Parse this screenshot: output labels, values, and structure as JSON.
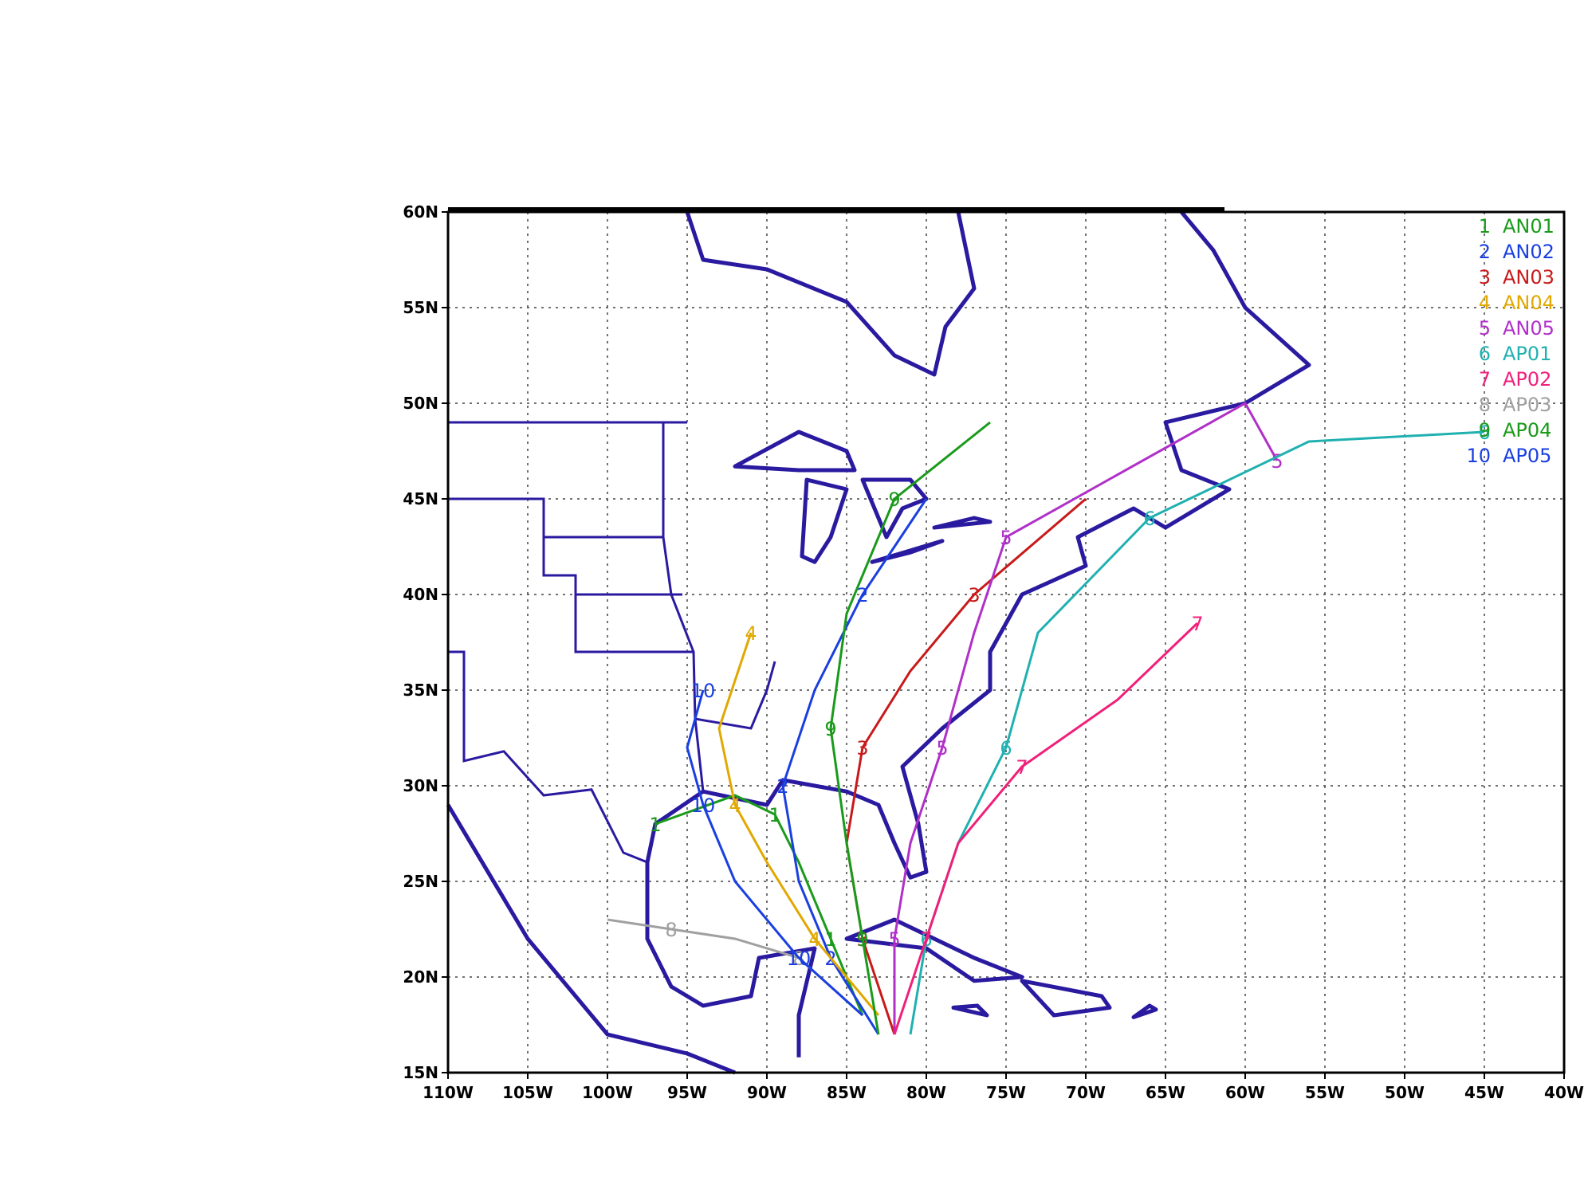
{
  "map": {
    "lonlim": [
      -110,
      -40
    ],
    "latlim": [
      15,
      60
    ],
    "grid": true,
    "lon_ticks": [
      {
        "value": -110,
        "label": "110W"
      },
      {
        "value": -105,
        "label": "105W"
      },
      {
        "value": -100,
        "label": "100W"
      },
      {
        "value": -95,
        "label": "95W"
      },
      {
        "value": -90,
        "label": "90W"
      },
      {
        "value": -85,
        "label": "85W"
      },
      {
        "value": -80,
        "label": "80W"
      },
      {
        "value": -75,
        "label": "75W"
      },
      {
        "value": -70,
        "label": "70W"
      },
      {
        "value": -65,
        "label": "65W"
      },
      {
        "value": -60,
        "label": "60W"
      },
      {
        "value": -55,
        "label": "55W"
      },
      {
        "value": -50,
        "label": "50W"
      },
      {
        "value": -45,
        "label": "45W"
      },
      {
        "value": -40,
        "label": "40W"
      }
    ],
    "lat_ticks": [
      {
        "value": 15,
        "label": "15N"
      },
      {
        "value": 20,
        "label": "20N"
      },
      {
        "value": 25,
        "label": "25N"
      },
      {
        "value": 30,
        "label": "30N"
      },
      {
        "value": 35,
        "label": "35N"
      },
      {
        "value": 40,
        "label": "40N"
      },
      {
        "value": 45,
        "label": "45N"
      },
      {
        "value": 50,
        "label": "50N"
      },
      {
        "value": 55,
        "label": "55N"
      },
      {
        "value": 60,
        "label": "60N"
      }
    ],
    "tracks": [
      {
        "number": 1,
        "name": "AN01",
        "color": "#1a9a1a",
        "lon": [
          -84,
          -86,
          -88,
          -89.5,
          -92,
          -97
        ],
        "lat": [
          18,
          22,
          26,
          28.5,
          29.5,
          28
        ]
      },
      {
        "number": 2,
        "name": "AN02",
        "color": "#1a3fe0",
        "lon": [
          -83,
          -86,
          -88,
          -89,
          -87,
          -84,
          -80
        ],
        "lat": [
          17,
          21,
          25,
          30,
          35,
          40,
          45
        ]
      },
      {
        "number": 3,
        "name": "AN03",
        "color": "#c81a1a",
        "lon": [
          -82,
          -84,
          -85,
          -84,
          -81,
          -77,
          -70
        ],
        "lat": [
          17,
          22,
          27,
          32,
          36,
          40,
          45
        ]
      },
      {
        "number": 4,
        "name": "AN04",
        "color": "#e0a800",
        "lon": [
          -83,
          -87,
          -90,
          -92,
          -93,
          -91
        ],
        "lat": [
          18,
          22,
          26,
          29,
          33,
          38
        ]
      },
      {
        "number": 5,
        "name": "AN05",
        "color": "#b030c8",
        "lon": [
          -82,
          -82,
          -81,
          -79,
          -77,
          -75,
          -60,
          -58
        ],
        "lat": [
          17,
          22,
          27,
          32,
          38,
          43,
          50,
          47
        ]
      },
      {
        "number": 6,
        "name": "AP01",
        "color": "#20b0b0",
        "lon": [
          -81,
          -80,
          -78,
          -75,
          -73,
          -66,
          -56,
          -45
        ],
        "lat": [
          17,
          22,
          27,
          32,
          38,
          44,
          48,
          48.5
        ]
      },
      {
        "number": 7,
        "name": "AP02",
        "color": "#f0207a",
        "lon": [
          -82,
          -80,
          -78,
          -74,
          -68,
          -63
        ],
        "lat": [
          17,
          22,
          27,
          31,
          34.5,
          38.5
        ]
      },
      {
        "number": 8,
        "name": "AP03",
        "color": "#a0a0a0",
        "lon": [
          -84,
          -88,
          -92,
          -96,
          -100
        ],
        "lat": [
          18,
          21,
          22,
          22.5,
          23
        ]
      },
      {
        "number": 9,
        "name": "AP04",
        "color": "#1a9a1a",
        "lon": [
          -83,
          -84,
          -85,
          -86,
          -85,
          -82,
          -76
        ],
        "lat": [
          17,
          22,
          27,
          33,
          39,
          45,
          49
        ]
      },
      {
        "number": 10,
        "name": "AP05",
        "color": "#1a3fe0",
        "lon": [
          -84,
          -88,
          -92,
          -94,
          -95,
          -94
        ],
        "lat": [
          18,
          21,
          25,
          29,
          32,
          35
        ]
      }
    ]
  }
}
